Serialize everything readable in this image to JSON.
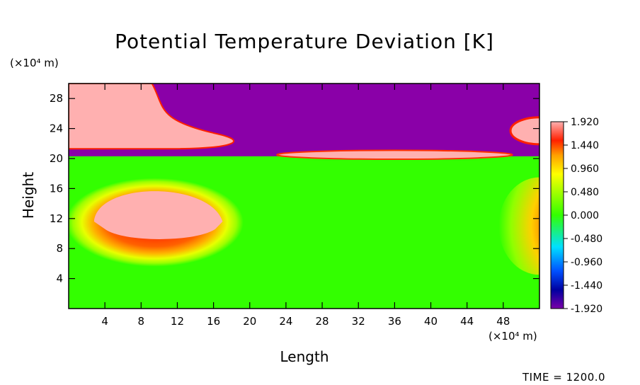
{
  "chart_data": {
    "type": "heatmap",
    "title": "Potential Temperature Deviation [K]",
    "xlabel": "Length",
    "ylabel": "Height",
    "x_unit": "(×10⁴ m)",
    "y_unit": "(×10⁴ m)",
    "xlim": [
      0,
      52
    ],
    "ylim": [
      0,
      30
    ],
    "x_ticks": [
      4,
      8,
      12,
      16,
      20,
      24,
      28,
      32,
      36,
      40,
      44,
      48
    ],
    "y_ticks": [
      4,
      8,
      12,
      16,
      20,
      24,
      28
    ],
    "colorbar": {
      "range": [
        -1.92,
        1.92
      ],
      "tick_values": [
        1.92,
        1.44,
        0.96,
        0.48,
        0.0,
        -0.48,
        -0.96,
        -1.44,
        -1.92
      ],
      "tick_labels": [
        "1.920",
        "1.440",
        "0.960",
        "0.480",
        "0.000",
        "-0.480",
        "-0.960",
        "-1.440",
        "-1.920"
      ]
    },
    "features": [
      {
        "name": "warm bubble",
        "center_x": 9.5,
        "center_y": 11.5,
        "peak_value": 1.92
      },
      {
        "name": "upper warm region",
        "x_range": [
          0,
          20
        ],
        "y_range": [
          20.5,
          30
        ],
        "value": 1.92
      },
      {
        "name": "upper cold region",
        "x_range": [
          12,
          52
        ],
        "y_range": [
          20.5,
          30
        ],
        "value": -1.92
      },
      {
        "name": "right boundary anomaly",
        "center_x": 52,
        "center_y": 11,
        "peak_value": 1.0
      }
    ],
    "footer": "TIME =  1200.0"
  }
}
